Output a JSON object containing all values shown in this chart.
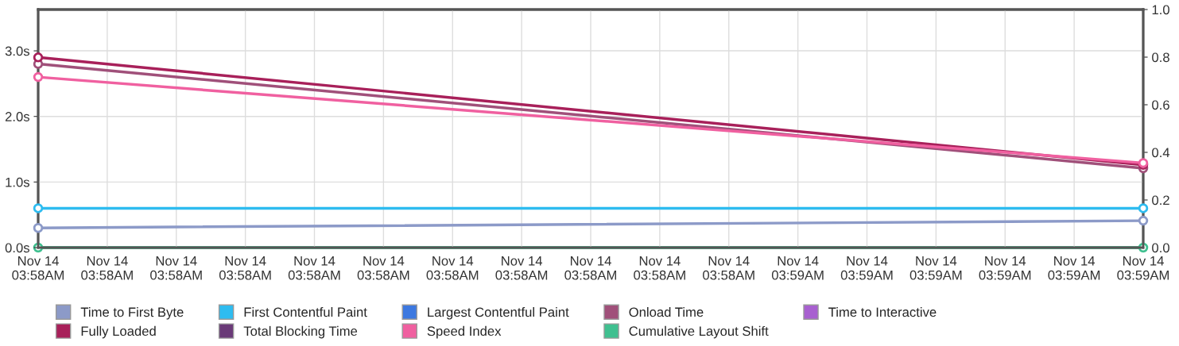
{
  "chart_data": {
    "type": "line",
    "categories": [
      "Nov 14\n03:58AM",
      "Nov 14\n03:58AM",
      "Nov 14\n03:58AM",
      "Nov 14\n03:58AM",
      "Nov 14\n03:58AM",
      "Nov 14\n03:58AM",
      "Nov 14\n03:58AM",
      "Nov 14\n03:58AM",
      "Nov 14\n03:58AM",
      "Nov 14\n03:58AM",
      "Nov 14\n03:58AM",
      "Nov 14\n03:59AM",
      "Nov 14\n03:59AM",
      "Nov 14\n03:59AM",
      "Nov 14\n03:59AM",
      "Nov 14\n03:59AM",
      "Nov 14\n03:59AM"
    ],
    "series": [
      {
        "name": "Time to First Byte",
        "color": "#8c9ac8",
        "values": [
          0.3,
          null,
          null,
          null,
          null,
          null,
          null,
          null,
          null,
          null,
          null,
          null,
          null,
          null,
          null,
          null,
          0.41
        ]
      },
      {
        "name": "First Contentful Paint",
        "color": "#2ebcf0",
        "values": [
          0.6,
          null,
          null,
          null,
          null,
          null,
          null,
          null,
          null,
          null,
          null,
          null,
          null,
          null,
          null,
          null,
          0.6
        ]
      },
      {
        "name": "Largest Contentful Paint",
        "color": "#3c78e0",
        "values": [
          null,
          null,
          null,
          null,
          null,
          null,
          null,
          null,
          null,
          null,
          null,
          null,
          null,
          null,
          null,
          null,
          null
        ]
      },
      {
        "name": "Onload Time",
        "color": "#a0507a",
        "values": [
          2.8,
          null,
          null,
          null,
          null,
          null,
          null,
          null,
          null,
          null,
          null,
          null,
          null,
          null,
          null,
          null,
          1.21
        ]
      },
      {
        "name": "Time to Interactive",
        "color": "#a860d0",
        "values": [
          null,
          null,
          null,
          null,
          null,
          null,
          null,
          null,
          null,
          null,
          null,
          null,
          null,
          null,
          null,
          null,
          null
        ]
      },
      {
        "name": "Fully Loaded",
        "color": "#a8205a",
        "values": [
          2.9,
          null,
          null,
          null,
          null,
          null,
          null,
          null,
          null,
          null,
          null,
          null,
          null,
          null,
          null,
          null,
          1.26
        ]
      },
      {
        "name": "Total Blocking Time",
        "color": "#6a3a78",
        "values": [
          null,
          null,
          null,
          null,
          null,
          null,
          null,
          null,
          null,
          null,
          null,
          null,
          null,
          null,
          null,
          null,
          null
        ]
      },
      {
        "name": "Speed Index",
        "color": "#f060a0",
        "values": [
          2.6,
          null,
          null,
          null,
          null,
          null,
          null,
          null,
          null,
          null,
          null,
          null,
          null,
          null,
          null,
          null,
          1.29
        ]
      },
      {
        "name": "Cumulative Layout Shift",
        "color": "#40c090",
        "axis": "y2",
        "values": [
          0,
          null,
          null,
          null,
          null,
          null,
          null,
          null,
          null,
          null,
          null,
          null,
          null,
          null,
          null,
          null,
          0
        ]
      }
    ],
    "ylim": [
      0,
      3.63
    ],
    "yticks": [
      {
        "value": 0,
        "label": "0.0s"
      },
      {
        "value": 1,
        "label": "1.0s"
      },
      {
        "value": 2,
        "label": "2.0s"
      },
      {
        "value": 3,
        "label": "3.0s"
      }
    ],
    "y2lim": [
      0,
      1.0
    ],
    "y2ticks": [
      {
        "value": 0,
        "label": "0.0"
      },
      {
        "value": 0.2,
        "label": "0.2"
      },
      {
        "value": 0.4,
        "label": "0.4"
      },
      {
        "value": 0.6,
        "label": "0.6"
      },
      {
        "value": 0.8,
        "label": "0.8"
      },
      {
        "value": 1.0,
        "label": "1.0"
      }
    ],
    "grid": true,
    "legend": "bottom",
    "marker": "circle",
    "line_style": "solid"
  }
}
